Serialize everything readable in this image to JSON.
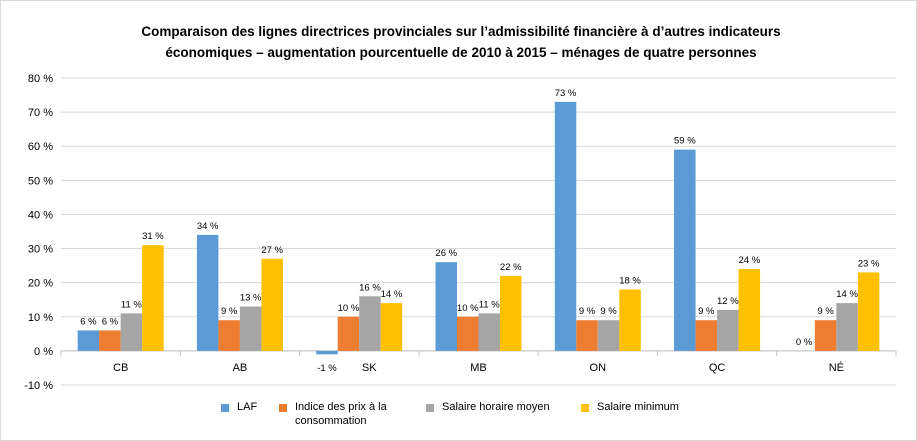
{
  "chart_data": {
    "type": "bar",
    "title_line1": "Comparaison des lignes directrices provinciales sur l’admissibilité financière à d’autres indicateurs",
    "title_line2": "économiques – augmentation pourcentuelle de 2010 à 2015 – ménages de quatre personnes",
    "categories": [
      "CB",
      "AB",
      "SK",
      "MB",
      "ON",
      "QC",
      "NÉ"
    ],
    "ylim": [
      -10,
      80
    ],
    "yticks": [
      -10,
      0,
      10,
      20,
      30,
      40,
      50,
      60,
      70,
      80
    ],
    "ytick_labels": [
      "-10 %",
      "0 %",
      "10 %",
      "20 %",
      "30 %",
      "40 %",
      "50 %",
      "60 %",
      "70 %",
      "80 %"
    ],
    "grid": true,
    "legend_position": "bottom",
    "series": [
      {
        "name": "LAF",
        "color": "#5B9BD5",
        "values": [
          6,
          34,
          -1,
          26,
          73,
          59,
          0
        ],
        "labels": [
          "6 %",
          "34 %",
          "-1 %",
          "26 %",
          "73 %",
          "59 %",
          "0 %"
        ]
      },
      {
        "name": "Indice des prix à la consommation",
        "name_line1": "Indice des prix à la",
        "name_line2": "consommation",
        "color": "#ED7D31",
        "values": [
          6,
          9,
          10,
          10,
          9,
          9,
          9
        ],
        "labels": [
          "6 %",
          "9 %",
          "10 %",
          "10 %",
          "9 %",
          "9 %",
          "9 %"
        ]
      },
      {
        "name": "Salaire horaire moyen",
        "color": "#A5A5A5",
        "values": [
          11,
          13,
          16,
          11,
          9,
          12,
          14
        ],
        "labels": [
          "11 %",
          "13 %",
          "16 %",
          "11 %",
          "9 %",
          "12 %",
          "14 %"
        ]
      },
      {
        "name": "Salaire minimum",
        "color": "#FFC000",
        "values": [
          31,
          27,
          14,
          22,
          18,
          24,
          23
        ],
        "labels": [
          "31 %",
          "27 %",
          "14 %",
          "22 %",
          "18 %",
          "24 %",
          "23 %"
        ]
      }
    ]
  }
}
